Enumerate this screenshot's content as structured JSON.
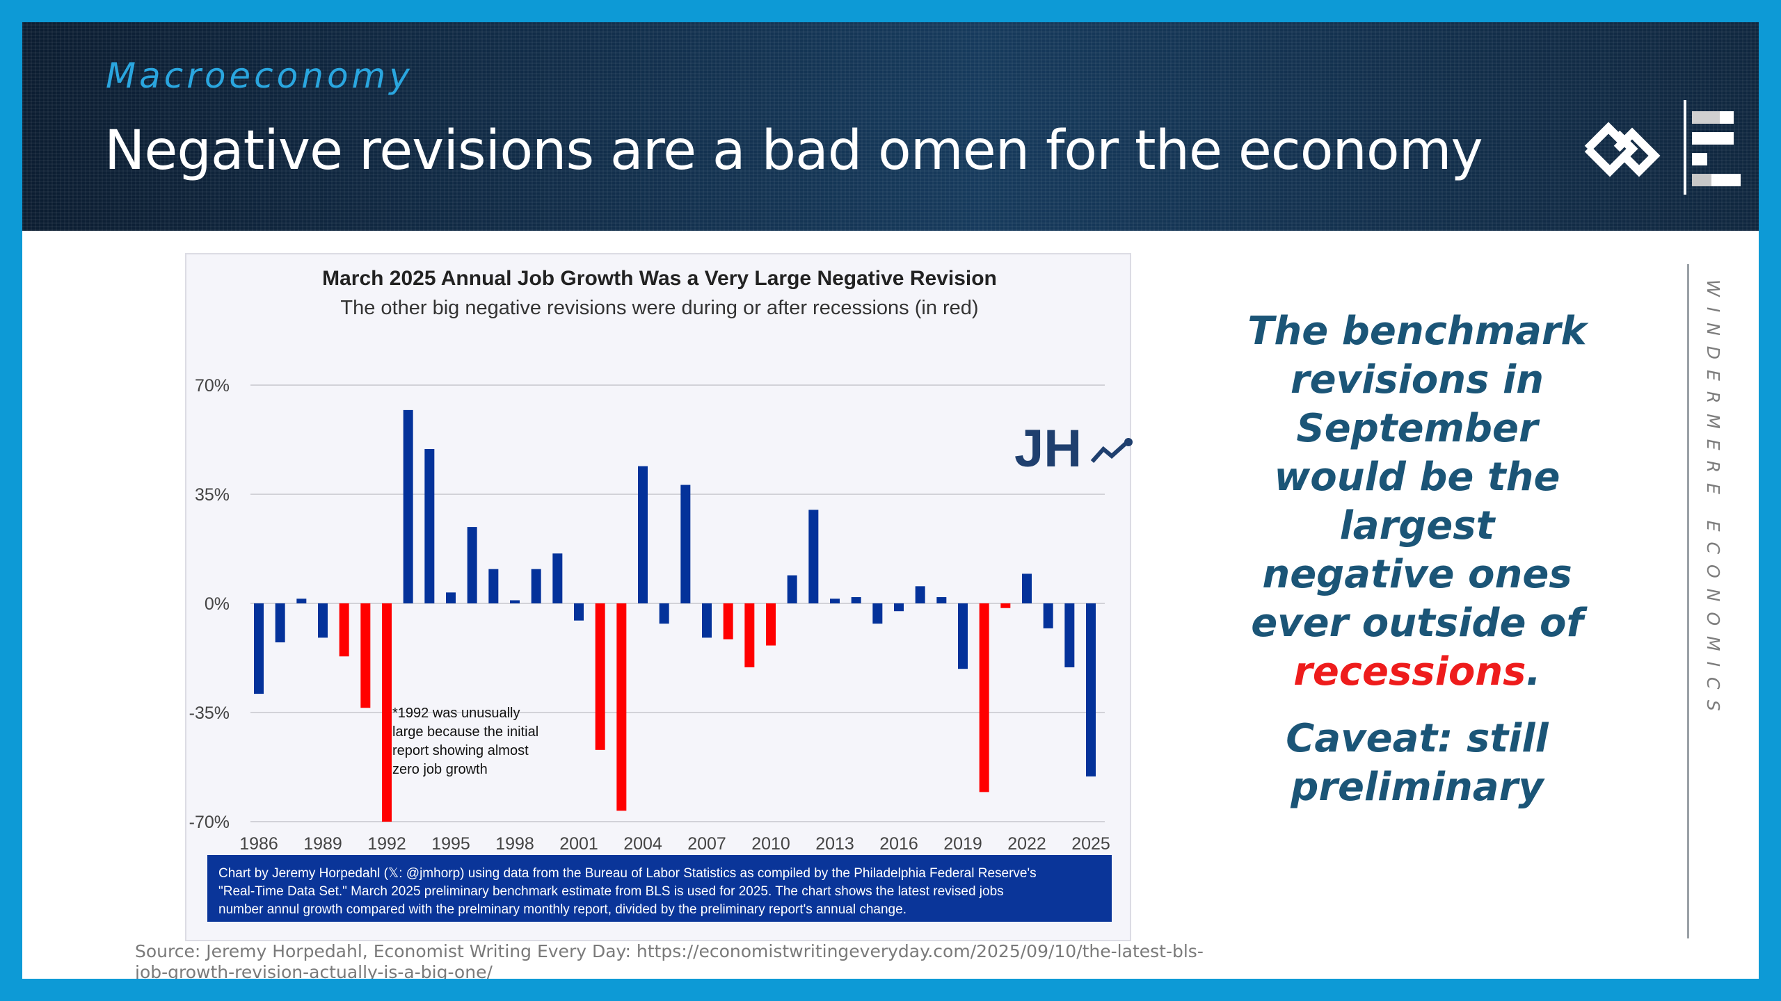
{
  "header": {
    "section": "Macroeconomy",
    "title": "Negative revisions are a bad omen for the economy"
  },
  "colors": {
    "frame": "#0d9ad6",
    "accent": "#2aa6df",
    "bar_normal": "#04329a",
    "bar_recession": "#ff0000",
    "callout_text": "#1b5577",
    "callout_highlight": "#ee1c1c"
  },
  "chart_data": {
    "type": "bar",
    "title": "March 2025 Annual Job Growth Was a Very Large Negative Revision",
    "subtitle": "The other big negative revisions were during or after recessions (in red)",
    "xlabel": "",
    "ylabel": "",
    "ylim": [
      -70,
      70
    ],
    "yticks": [
      70,
      35,
      0,
      -35,
      -70
    ],
    "ytick_labels": [
      "70%",
      "35%",
      "0%",
      "-35%",
      "-70%"
    ],
    "xticks": [
      1986,
      1989,
      1992,
      1995,
      1998,
      2001,
      2004,
      2007,
      2010,
      2013,
      2016,
      2019,
      2022,
      2025
    ],
    "grid": true,
    "unit": "%",
    "bars": [
      {
        "year": 1986,
        "value": -29,
        "recession": false
      },
      {
        "year": 1987,
        "value": -12.5,
        "recession": false
      },
      {
        "year": 1988,
        "value": 1.5,
        "recession": false
      },
      {
        "year": 1989,
        "value": -11,
        "recession": false
      },
      {
        "year": 1990,
        "value": -17,
        "recession": true
      },
      {
        "year": 1991,
        "value": -33.5,
        "recession": true
      },
      {
        "year": 1992,
        "value": -70,
        "recession": true
      },
      {
        "year": 1993,
        "value": 62,
        "recession": false
      },
      {
        "year": 1994,
        "value": 49.5,
        "recession": false
      },
      {
        "year": 1995,
        "value": 3.5,
        "recession": false
      },
      {
        "year": 1996,
        "value": 24.5,
        "recession": false
      },
      {
        "year": 1997,
        "value": 11,
        "recession": false
      },
      {
        "year": 1998,
        "value": 1,
        "recession": false
      },
      {
        "year": 1999,
        "value": 11,
        "recession": false
      },
      {
        "year": 2000,
        "value": 16,
        "recession": false
      },
      {
        "year": 2001,
        "value": -5.5,
        "recession": false
      },
      {
        "year": 2002,
        "value": -47,
        "recession": true
      },
      {
        "year": 2003,
        "value": -66.5,
        "recession": true
      },
      {
        "year": 2004,
        "value": 44,
        "recession": false
      },
      {
        "year": 2005,
        "value": -6.5,
        "recession": false
      },
      {
        "year": 2006,
        "value": 38,
        "recession": false
      },
      {
        "year": 2007,
        "value": -11,
        "recession": false
      },
      {
        "year": 2008,
        "value": -11.5,
        "recession": true
      },
      {
        "year": 2009,
        "value": -20.5,
        "recession": true
      },
      {
        "year": 2010,
        "value": -13.5,
        "recession": true
      },
      {
        "year": 2011,
        "value": 9,
        "recession": false
      },
      {
        "year": 2012,
        "value": 30,
        "recession": false
      },
      {
        "year": 2013,
        "value": 1.5,
        "recession": false
      },
      {
        "year": 2014,
        "value": 2,
        "recession": false
      },
      {
        "year": 2015,
        "value": -6.5,
        "recession": false
      },
      {
        "year": 2016,
        "value": -2.5,
        "recession": false
      },
      {
        "year": 2017,
        "value": 5.5,
        "recession": false
      },
      {
        "year": 2018,
        "value": 2,
        "recession": false
      },
      {
        "year": 2019,
        "value": -21,
        "recession": false
      },
      {
        "year": 2020,
        "value": -60.5,
        "recession": true
      },
      {
        "year": 2021,
        "value": -1.5,
        "recession": true
      },
      {
        "year": 2022,
        "value": 9.5,
        "recession": false
      },
      {
        "year": 2023,
        "value": -8,
        "recession": false
      },
      {
        "year": 2024,
        "value": -20.5,
        "recession": false
      },
      {
        "year": 2025,
        "value": -55.5,
        "recession": false
      }
    ],
    "annotation": [
      "*1992 was unusually",
      "large because the initial",
      "report showing almost",
      "zero job growth"
    ],
    "logo_text": "JH",
    "footnote": [
      "Chart by Jeremy Horpedahl (𝕏: @jmhorp) using data from the Bureau of Labor Statistics as compiled by the Philadelphia Federal Reserve's",
      "\"Real-Time Data Set.\" March 2025 preliminary benchmark estimate from BLS is used for 2025.  The chart shows the latest revised jobs",
      "number annul growth compared with the prelminary monthly report, divided by the preliminary report's annual change."
    ]
  },
  "source": "Source: Jeremy Horpedahl, Economist Writing Every Day: https://economistwritingeveryday.com/2025/09/10/the-latest-bls-job-growth-revision-actually-is-a-big-one/",
  "callout": {
    "main_before": "The benchmark revisions in September would be the largest negative ones ever outside of ",
    "main_highlight": "recessions",
    "main_after": ".",
    "caveat": "Caveat: still preliminary"
  },
  "side_brand": "WINDERMERE ECONOMICS"
}
